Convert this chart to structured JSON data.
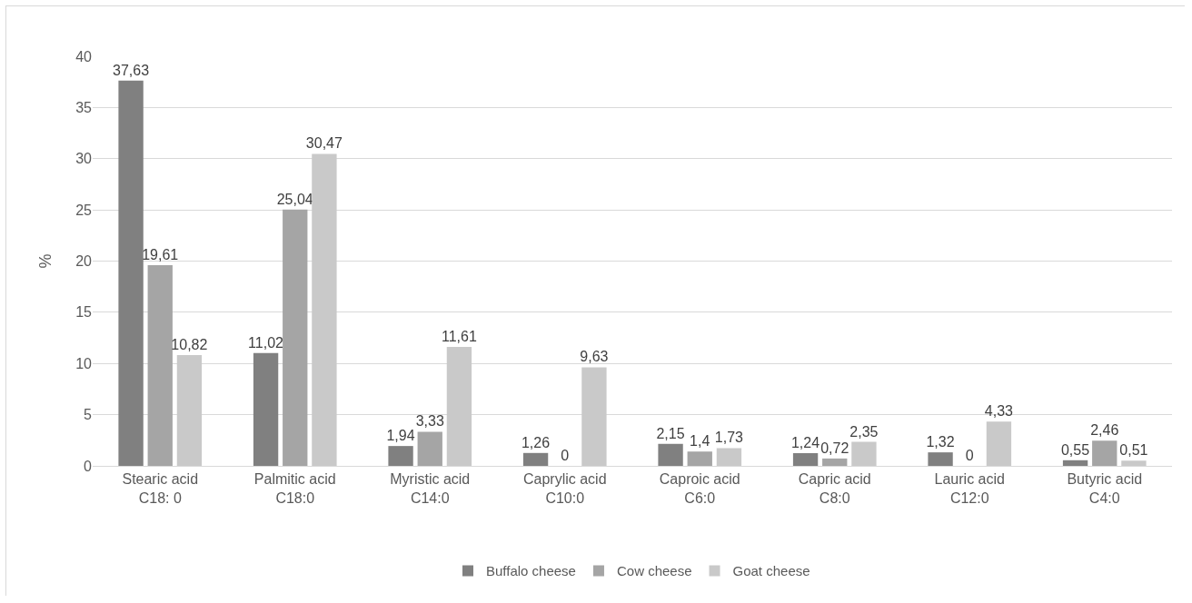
{
  "chart_data": {
    "type": "bar",
    "categories": [
      "Stearic acid\nC18: 0",
      "Palmitic acid\nC18:0",
      "Myristic acid\nC14:0",
      "Caprylic acid\nC10:0",
      "Caproic acid\nC6:0",
      "Capric acid\nC8:0",
      "Lauric acid\nC12:0",
      "Butyric acid\nC4:0"
    ],
    "series": [
      {
        "name": "Buffalo cheese",
        "color": "#808080",
        "values": [
          37.63,
          11.02,
          1.94,
          1.26,
          2.15,
          1.24,
          1.32,
          0.55
        ],
        "value_labels": [
          "37,63",
          "11,02",
          "1,94",
          "1,26",
          "2,15",
          "1,24",
          "1,32",
          "0,55"
        ]
      },
      {
        "name": "Cow cheese",
        "color": "#a5a5a5",
        "values": [
          19.61,
          25.04,
          3.33,
          0,
          1.4,
          0.72,
          0,
          2.46
        ],
        "value_labels": [
          "19,61",
          "25,04",
          "3,33",
          "0",
          "1,4",
          "0,72",
          "0",
          "2,46"
        ]
      },
      {
        "name": "Goat cheese",
        "color": "#c9c9c9",
        "values": [
          10.82,
          30.47,
          11.61,
          9.63,
          1.73,
          2.35,
          4.33,
          0.51
        ],
        "value_labels": [
          "10,82",
          "30,47",
          "11,61",
          "9,63",
          "1,73",
          "2,35",
          "4,33",
          "0,51"
        ]
      }
    ],
    "ylabel": "%",
    "ylim": [
      0,
      40
    ],
    "yticks": [
      0,
      5,
      10,
      15,
      20,
      25,
      30,
      35,
      40
    ],
    "grid": "y",
    "legend": "bottom"
  }
}
